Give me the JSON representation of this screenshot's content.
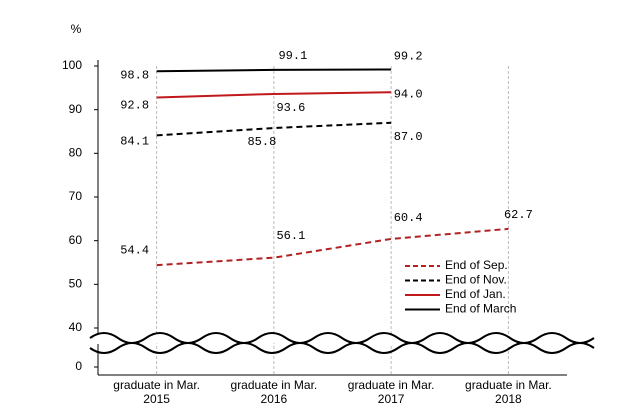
{
  "chart_data": {
    "type": "line",
    "y_label": "%",
    "categories": [
      [
        "graduate in Mar.",
        "2015"
      ],
      [
        "graduate in Mar.",
        "2016"
      ],
      [
        "graduate in Mar.",
        "2017"
      ],
      [
        "graduate in Mar.",
        "2018"
      ]
    ],
    "series": [
      {
        "name": "End of Sep.",
        "color": "#b22222",
        "dashed": true,
        "values": [
          54.4,
          56.1,
          60.4,
          62.7
        ],
        "value_labels": [
          "54.4",
          "56.1",
          "60.4",
          "62.7"
        ]
      },
      {
        "name": "End of Nov.",
        "color": "#000000",
        "dashed": true,
        "values": [
          84.1,
          85.8,
          87.0,
          null
        ],
        "value_labels": [
          "84.1",
          "85.8",
          "87.0",
          null
        ]
      },
      {
        "name": "End of Jan.",
        "color": "#c0181b",
        "dashed": false,
        "values": [
          92.8,
          93.6,
          94.0,
          null
        ],
        "value_labels": [
          "92.8",
          "93.6",
          "94.0",
          null
        ]
      },
      {
        "name": "End of March",
        "color": "#000000",
        "dashed": false,
        "values": [
          98.8,
          99.1,
          99.2,
          null
        ],
        "value_labels": [
          "98.8",
          "99.1",
          "99.2",
          null
        ]
      }
    ],
    "ylim": [
      0,
      100
    ],
    "axis_break": [
      0,
      40
    ],
    "yticks": [
      0,
      40,
      50,
      60,
      70,
      80,
      90,
      100
    ],
    "grid": "x",
    "legend": "lower-right"
  }
}
